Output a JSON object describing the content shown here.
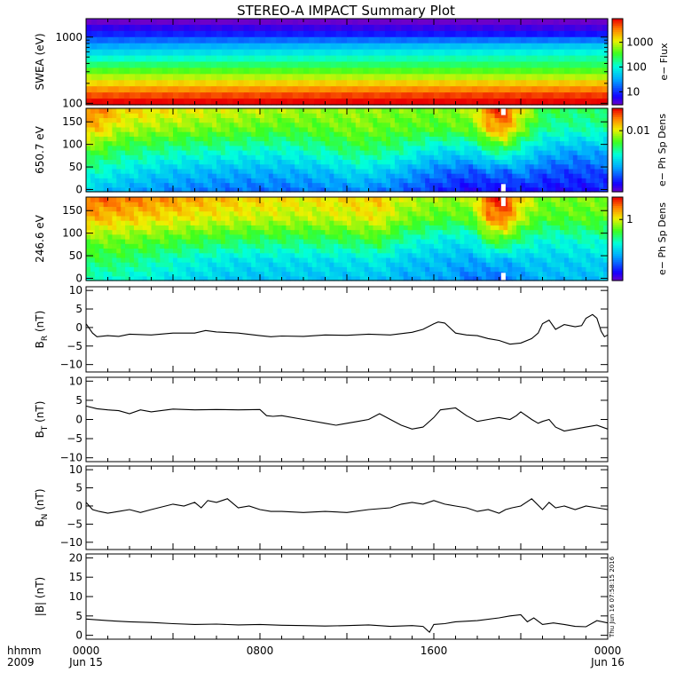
{
  "title": "STEREO-A IMPACT Summary Plot",
  "timestamp": "Thu Jun 16 07:58:15 2016",
  "x_axis": {
    "prefix_top": "hhmm",
    "prefix_bottom": "2009",
    "ticks": [
      {
        "hours": 0,
        "top": "0000",
        "bottom": "Jun 15"
      },
      {
        "hours": 8,
        "top": "0800",
        "bottom": ""
      },
      {
        "hours": 16,
        "top": "1600",
        "bottom": ""
      },
      {
        "hours": 24,
        "top": "0000",
        "bottom": "Jun 16"
      }
    ]
  },
  "colors": {
    "line": "#000000",
    "gap": "#ffffff",
    "frame": "#000000"
  },
  "chart_data": [
    {
      "type": "heatmap",
      "id": "swea",
      "ylabel": "SWEA (eV)",
      "yscale": "log",
      "ylim": [
        95,
        1900
      ],
      "yticks": [
        {
          "v": 100,
          "label": "100"
        },
        {
          "v": 1000,
          "label": "1000"
        }
      ],
      "xlim": [
        0,
        24
      ],
      "colorbar": {
        "label": "e− Flux",
        "scale": "log",
        "range": [
          3,
          9000
        ],
        "ticks": [
          {
            "v": 10,
            "label": "10"
          },
          {
            "v": 100,
            "label": "100"
          },
          {
            "v": 1000,
            "label": "1000"
          }
        ]
      },
      "rows": [
        [
          0.0,
          0.0
        ],
        [
          0.07,
          0.05
        ],
        [
          0.14,
          0.12
        ],
        [
          0.22,
          0.24
        ],
        [
          0.3,
          0.36
        ],
        [
          0.38,
          0.44
        ],
        [
          0.46,
          0.5
        ],
        [
          0.54,
          0.55
        ],
        [
          0.62,
          0.62
        ],
        [
          0.7,
          0.7
        ],
        [
          0.78,
          0.8
        ],
        [
          0.86,
          0.88
        ],
        [
          0.93,
          0.95
        ],
        [
          1.0,
          1.0
        ]
      ]
    },
    {
      "type": "heatmap",
      "id": "pad650",
      "ylabel": "650.7 eV",
      "ylim": [
        -5,
        180
      ],
      "yticks": [
        {
          "v": 0,
          "label": "0"
        },
        {
          "v": 50,
          "label": "50"
        },
        {
          "v": 100,
          "label": "100"
        },
        {
          "v": 150,
          "label": "150"
        }
      ],
      "xlim": [
        0,
        24
      ],
      "colorbar": {
        "label": "e− Ph Sp Dens",
        "scale": "log",
        "range": [
          0.0005,
          0.03
        ],
        "ticks": [
          {
            "v": 0.01,
            "label": "0.01"
          }
        ]
      },
      "gap": {
        "x": 19.2,
        "y_top": [
          165,
          180
        ],
        "y_bottom": [
          -5,
          12
        ]
      },
      "keyframes": [
        {
          "x": 0.0,
          "t": [
            0.35,
            0.48,
            0.62,
            0.8,
            0.9
          ]
        },
        {
          "x": 0.7,
          "t": [
            0.33,
            0.46,
            0.6,
            0.78,
            0.88
          ]
        },
        {
          "x": 1.5,
          "t": [
            0.3,
            0.42,
            0.55,
            0.7,
            0.8
          ]
        },
        {
          "x": 4.0,
          "t": [
            0.25,
            0.35,
            0.5,
            0.66,
            0.76
          ]
        },
        {
          "x": 7.0,
          "t": [
            0.22,
            0.32,
            0.47,
            0.63,
            0.72
          ]
        },
        {
          "x": 9.0,
          "t": [
            0.22,
            0.32,
            0.45,
            0.6,
            0.7
          ]
        },
        {
          "x": 11.0,
          "t": [
            0.24,
            0.34,
            0.5,
            0.62,
            0.68
          ]
        },
        {
          "x": 12.5,
          "t": [
            0.26,
            0.4,
            0.55,
            0.65,
            0.68
          ]
        },
        {
          "x": 14.0,
          "t": [
            0.22,
            0.35,
            0.52,
            0.62,
            0.66
          ]
        },
        {
          "x": 16.0,
          "t": [
            0.15,
            0.25,
            0.4,
            0.6,
            0.65
          ]
        },
        {
          "x": 17.8,
          "t": [
            0.08,
            0.2,
            0.4,
            0.62,
            0.7
          ]
        },
        {
          "x": 18.5,
          "t": [
            0.1,
            0.25,
            0.5,
            0.8,
            0.92
          ]
        },
        {
          "x": 19.3,
          "t": [
            0.08,
            0.22,
            0.55,
            0.85,
            0.96
          ]
        },
        {
          "x": 19.9,
          "t": [
            0.12,
            0.28,
            0.45,
            0.68,
            0.78
          ]
        },
        {
          "x": 21.0,
          "t": [
            0.1,
            0.2,
            0.35,
            0.5,
            0.58
          ]
        },
        {
          "x": 22.5,
          "t": [
            0.1,
            0.18,
            0.3,
            0.48,
            0.55
          ]
        },
        {
          "x": 24.0,
          "t": [
            0.12,
            0.2,
            0.32,
            0.5,
            0.55
          ]
        }
      ]
    },
    {
      "type": "heatmap",
      "id": "pad246",
      "ylabel": "246.6 eV",
      "ylim": [
        -5,
        180
      ],
      "yticks": [
        {
          "v": 0,
          "label": "0"
        },
        {
          "v": 50,
          "label": "50"
        },
        {
          "v": 100,
          "label": "100"
        },
        {
          "v": 150,
          "label": "150"
        }
      ],
      "xlim": [
        0,
        24
      ],
      "colorbar": {
        "label": "e− Ph Sp Dens",
        "scale": "log",
        "range": [
          0.05,
          3
        ],
        "ticks": [
          {
            "v": 1,
            "label": "1"
          }
        ]
      },
      "gap": {
        "x": 19.2,
        "y_top": [
          160,
          180
        ],
        "y_bottom": [
          -5,
          12
        ]
      },
      "keyframes": [
        {
          "x": 0.0,
          "t": [
            0.45,
            0.55,
            0.65,
            0.82,
            0.92
          ]
        },
        {
          "x": 1.5,
          "t": [
            0.45,
            0.55,
            0.65,
            0.8,
            0.9
          ]
        },
        {
          "x": 4.5,
          "t": [
            0.38,
            0.45,
            0.6,
            0.75,
            0.85
          ]
        },
        {
          "x": 7.0,
          "t": [
            0.34,
            0.4,
            0.56,
            0.72,
            0.8
          ]
        },
        {
          "x": 10.0,
          "t": [
            0.34,
            0.4,
            0.55,
            0.7,
            0.76
          ]
        },
        {
          "x": 12.0,
          "t": [
            0.34,
            0.4,
            0.56,
            0.72,
            0.78
          ]
        },
        {
          "x": 13.5,
          "t": [
            0.34,
            0.42,
            0.6,
            0.75,
            0.8
          ]
        },
        {
          "x": 14.5,
          "t": [
            0.3,
            0.36,
            0.5,
            0.66,
            0.72
          ]
        },
        {
          "x": 16.5,
          "t": [
            0.3,
            0.33,
            0.42,
            0.6,
            0.68
          ]
        },
        {
          "x": 17.8,
          "t": [
            0.22,
            0.3,
            0.42,
            0.62,
            0.7
          ]
        },
        {
          "x": 18.5,
          "t": [
            0.22,
            0.35,
            0.6,
            0.85,
            0.95
          ]
        },
        {
          "x": 19.3,
          "t": [
            0.2,
            0.33,
            0.62,
            0.9,
            0.97
          ]
        },
        {
          "x": 20.0,
          "t": [
            0.28,
            0.36,
            0.52,
            0.7,
            0.78
          ]
        },
        {
          "x": 21.0,
          "t": [
            0.32,
            0.36,
            0.45,
            0.6,
            0.65
          ]
        },
        {
          "x": 24.0,
          "t": [
            0.33,
            0.38,
            0.48,
            0.62,
            0.66
          ]
        }
      ]
    },
    {
      "type": "line",
      "id": "br",
      "ylabel": "B_R (nT)",
      "ylabel_main": "B",
      "ylabel_sub": "R",
      "ylabel_unit": " (nT)",
      "ylim": [
        -12,
        11
      ],
      "yticks": [
        {
          "v": -10,
          "label": "−10"
        },
        {
          "v": -5,
          "label": "−5"
        },
        {
          "v": 0,
          "label": "0"
        },
        {
          "v": 5,
          "label": "5"
        },
        {
          "v": 10,
          "label": "10"
        }
      ],
      "xlim": [
        0,
        24
      ],
      "x": [
        0.0,
        0.3,
        0.5,
        1.0,
        1.5,
        2.0,
        3.0,
        4.0,
        5.0,
        5.5,
        6.0,
        7.0,
        8.0,
        8.5,
        9.0,
        10.0,
        11.0,
        12.0,
        13.0,
        14.0,
        15.0,
        15.5,
        16.0,
        16.2,
        16.5,
        17.0,
        17.5,
        18.0,
        18.5,
        19.0,
        19.5,
        20.0,
        20.5,
        20.8,
        21.0,
        21.3,
        21.6,
        22.0,
        22.5,
        22.8,
        23.0,
        23.3,
        23.5,
        23.7,
        23.85,
        24.0
      ],
      "y": [
        1.0,
        -1.5,
        -2.5,
        -2.2,
        -2.4,
        -1.8,
        -2.0,
        -1.5,
        -1.5,
        -0.8,
        -1.2,
        -1.5,
        -2.2,
        -2.5,
        -2.3,
        -2.4,
        -2.0,
        -2.1,
        -1.8,
        -2.0,
        -1.3,
        -0.5,
        1.0,
        1.5,
        1.2,
        -1.5,
        -2.0,
        -2.2,
        -3.0,
        -3.5,
        -4.5,
        -4.2,
        -3.0,
        -1.5,
        1.0,
        2.0,
        -0.5,
        0.8,
        0.2,
        0.5,
        2.5,
        3.5,
        2.5,
        -1.0,
        -2.5,
        -2.0
      ]
    },
    {
      "type": "line",
      "id": "bt",
      "ylabel": "B_T (nT)",
      "ylabel_main": "B",
      "ylabel_sub": "T",
      "ylabel_unit": " (nT)",
      "ylim": [
        -11,
        11
      ],
      "yticks": [
        {
          "v": -10,
          "label": "−10"
        },
        {
          "v": -5,
          "label": "−5"
        },
        {
          "v": 0,
          "label": "0"
        },
        {
          "v": 5,
          "label": "5"
        },
        {
          "v": 10,
          "label": "10"
        }
      ],
      "xlim": [
        0,
        24
      ],
      "x": [
        0.0,
        0.5,
        1.0,
        1.5,
        2.0,
        2.5,
        3.0,
        4.0,
        5.0,
        6.0,
        7.0,
        8.0,
        8.3,
        8.6,
        9.0,
        10.0,
        11.0,
        11.5,
        12.0,
        12.5,
        13.0,
        13.5,
        14.0,
        14.5,
        15.0,
        15.5,
        16.0,
        16.3,
        16.7,
        17.0,
        17.5,
        18.0,
        18.5,
        19.0,
        19.5,
        19.8,
        20.0,
        20.5,
        20.8,
        21.0,
        21.3,
        21.6,
        22.0,
        22.5,
        23.0,
        23.5,
        24.0
      ],
      "y": [
        3.5,
        2.8,
        2.5,
        2.3,
        1.5,
        2.5,
        2.0,
        2.7,
        2.5,
        2.6,
        2.5,
        2.6,
        1.0,
        0.8,
        1.0,
        0.0,
        -1.0,
        -1.5,
        -1.0,
        -0.5,
        0.0,
        1.5,
        0.0,
        -1.5,
        -2.5,
        -2.0,
        0.5,
        2.5,
        2.8,
        3.0,
        1.0,
        -0.5,
        0.0,
        0.5,
        0.0,
        1.0,
        2.0,
        0.0,
        -1.0,
        -0.5,
        0.0,
        -2.0,
        -3.0,
        -2.5,
        -2.0,
        -1.5,
        -2.5
      ]
    },
    {
      "type": "line",
      "id": "bn",
      "ylabel": "B_N (nT)",
      "ylabel_main": "B",
      "ylabel_sub": "N",
      "ylabel_unit": " (nT)",
      "ylim": [
        -12,
        11
      ],
      "yticks": [
        {
          "v": -10,
          "label": "−10"
        },
        {
          "v": -5,
          "label": "−5"
        },
        {
          "v": 0,
          "label": "0"
        },
        {
          "v": 5,
          "label": "5"
        },
        {
          "v": 10,
          "label": "10"
        }
      ],
      "xlim": [
        0,
        24
      ],
      "x": [
        0.0,
        0.3,
        0.6,
        1.0,
        1.5,
        2.0,
        2.5,
        3.0,
        4.0,
        4.5,
        5.0,
        5.3,
        5.6,
        6.0,
        6.5,
        7.0,
        7.5,
        8.0,
        8.5,
        9.0,
        10.0,
        11.0,
        12.0,
        13.0,
        14.0,
        14.5,
        15.0,
        15.5,
        16.0,
        16.5,
        17.0,
        17.5,
        18.0,
        18.5,
        19.0,
        19.3,
        19.6,
        20.0,
        20.5,
        21.0,
        21.3,
        21.6,
        22.0,
        22.5,
        23.0,
        23.5,
        24.0
      ],
      "y": [
        1.0,
        -1.0,
        -1.5,
        -2.0,
        -1.5,
        -1.0,
        -1.8,
        -1.0,
        0.5,
        0.0,
        1.0,
        -0.5,
        1.5,
        1.0,
        2.0,
        -0.5,
        0.0,
        -1.0,
        -1.5,
        -1.5,
        -1.8,
        -1.5,
        -1.8,
        -1.0,
        -0.5,
        0.5,
        1.0,
        0.5,
        1.5,
        0.5,
        0.0,
        -0.5,
        -1.5,
        -1.0,
        -2.0,
        -1.0,
        -0.5,
        0.0,
        2.0,
        -1.0,
        1.0,
        -0.5,
        0.0,
        -1.0,
        0.0,
        -0.5,
        -1.0
      ]
    },
    {
      "type": "line",
      "id": "bmag",
      "ylabel": "|B| (nT)",
      "ylabel_main": "|B|",
      "ylabel_sub": "",
      "ylabel_unit": " (nT)",
      "ylim": [
        -1,
        21
      ],
      "yticks": [
        {
          "v": 0,
          "label": "0"
        },
        {
          "v": 5,
          "label": "5"
        },
        {
          "v": 10,
          "label": "10"
        },
        {
          "v": 15,
          "label": "15"
        },
        {
          "v": 20,
          "label": "20"
        }
      ],
      "xlim": [
        0,
        24
      ],
      "x": [
        0.0,
        0.5,
        1.0,
        2.0,
        3.0,
        4.0,
        5.0,
        6.0,
        7.0,
        8.0,
        9.0,
        10.0,
        11.0,
        12.0,
        13.0,
        14.0,
        15.0,
        15.5,
        15.8,
        16.0,
        16.5,
        17.0,
        18.0,
        19.0,
        19.5,
        20.0,
        20.3,
        20.6,
        21.0,
        21.5,
        22.0,
        22.5,
        23.0,
        23.5,
        24.0
      ],
      "y": [
        4.2,
        4.0,
        3.8,
        3.5,
        3.3,
        3.0,
        2.8,
        2.9,
        2.7,
        2.8,
        2.6,
        2.5,
        2.4,
        2.5,
        2.7,
        2.3,
        2.5,
        2.3,
        0.8,
        2.8,
        3.0,
        3.5,
        3.8,
        4.5,
        5.0,
        5.3,
        3.5,
        4.5,
        2.8,
        3.2,
        2.8,
        2.3,
        2.2,
        3.8,
        3.2
      ]
    }
  ]
}
